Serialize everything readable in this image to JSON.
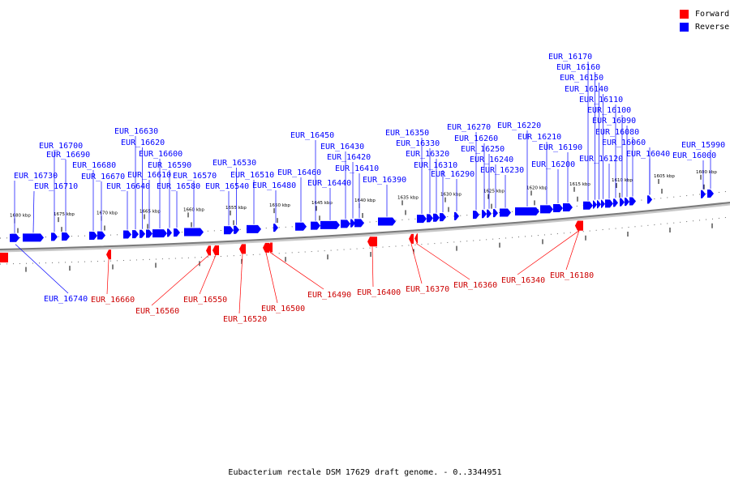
{
  "legend": {
    "forward": {
      "label": "Forward",
      "color": "#ff0000"
    },
    "reverse": {
      "label": "Reverse",
      "color": "#0000ff"
    }
  },
  "caption": "Eubacterium rectale DSM 17629 draft genome. - 0..3344951",
  "ticks": [
    "1680 kbp",
    "1675 kbp",
    "1670 kbp",
    "1665 kbp",
    "1660 kbp",
    "1655 kbp",
    "1650 kbp",
    "1645 kbp",
    "1640 kbp",
    "1635 kbp",
    "1630 kbp",
    "1625 kbp",
    "1620 kbp",
    "1615 kbp",
    "1610 kbp",
    "1605 kbp",
    "1600 kbp"
  ],
  "reverse_genes": [
    "EUR_16740",
    "EUR_16730",
    "EUR_16710",
    "EUR_16700",
    "EUR_16690",
    "EUR_16680",
    "EUR_16670",
    "EUR_16640",
    "EUR_16630",
    "EUR_16620",
    "EUR_16610",
    "EUR_16600",
    "EUR_16590",
    "EUR_16580",
    "EUR_16570",
    "EUR_16540",
    "EUR_16530",
    "EUR_16510",
    "EUR_16480",
    "EUR_16460",
    "EUR_16450",
    "EUR_16440",
    "EUR_16430",
    "EUR_16420",
    "EUR_16410",
    "EUR_16390",
    "EUR_16350",
    "EUR_16330",
    "EUR_16320",
    "EUR_16310",
    "EUR_16290",
    "EUR_16270",
    "EUR_16260",
    "EUR_16250",
    "EUR_16240",
    "EUR_16230",
    "EUR_16220",
    "EUR_16210",
    "EUR_16200",
    "EUR_16190",
    "EUR_16170",
    "EUR_16160",
    "EUR_16150",
    "EUR_16140",
    "EUR_16120",
    "EUR_16110",
    "EUR_16100",
    "EUR_16090",
    "EUR_16080",
    "EUR_16060",
    "EUR_16040",
    "EUR_16000",
    "EUR_15990"
  ],
  "forward_genes": [
    "EUR_16660",
    "EUR_16560",
    "EUR_16550",
    "EUR_16520",
    "EUR_16500",
    "EUR_16490",
    "EUR_16400",
    "EUR_16370",
    "EUR_16360",
    "EUR_16340",
    "EUR_16180"
  ]
}
